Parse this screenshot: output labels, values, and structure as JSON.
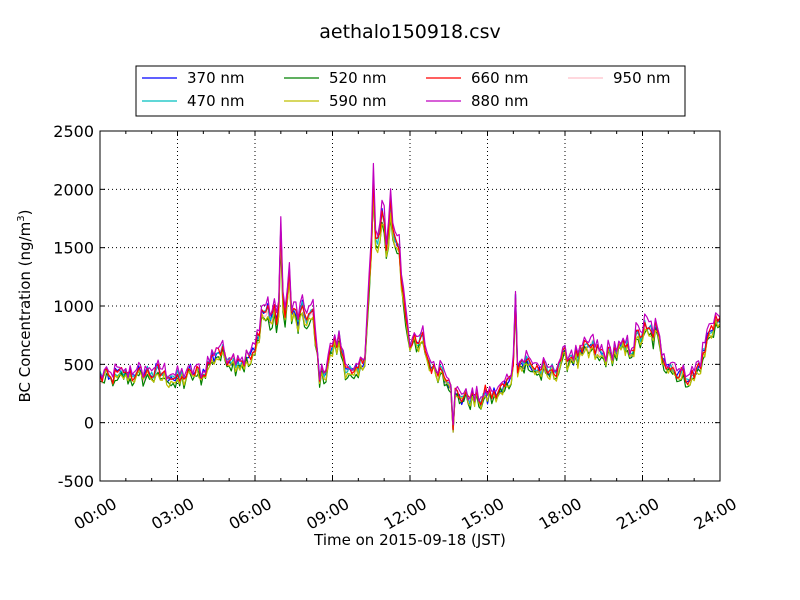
{
  "chart_data": {
    "type": "line",
    "title": "aethalo150918.csv",
    "xlabel": "Time on 2015-09-18 (JST)",
    "ylabel": "BC Concentration (ng/m",
    "ylabel_sup": "3",
    "ylabel_suffix": ")",
    "xlim": [
      "00:00",
      "24:00"
    ],
    "ylim": [
      -500,
      2500
    ],
    "x_ticks": [
      "00:00",
      "03:00",
      "06:00",
      "09:00",
      "12:00",
      "15:00",
      "18:00",
      "21:00",
      "24:00"
    ],
    "y_ticks": [
      -500,
      0,
      500,
      1000,
      1500,
      2000,
      2500
    ],
    "grid": true,
    "legend_position": "top",
    "series": [
      {
        "name": "370 nm",
        "color": "#0000ff"
      },
      {
        "name": "470 nm",
        "color": "#00bfbf"
      },
      {
        "name": "520 nm",
        "color": "#008000"
      },
      {
        "name": "590 nm",
        "color": "#bfbf00"
      },
      {
        "name": "660 nm",
        "color": "#ff0000"
      },
      {
        "name": "880 nm",
        "color": "#bf00bf"
      },
      {
        "name": "950 nm",
        "color": "#ffc0cb"
      }
    ],
    "profile_hours": [
      0,
      0.5,
      1,
      1.5,
      2,
      2.5,
      3,
      3.5,
      4,
      4.5,
      5,
      5.5,
      6,
      6.25,
      6.5,
      6.75,
      7,
      7.25,
      7.5,
      7.75,
      8,
      8.25,
      8.5,
      8.75,
      9,
      9.25,
      9.5,
      9.75,
      10,
      10.25,
      10.5,
      10.75,
      11,
      11.25,
      11.5,
      11.75,
      12,
      12.25,
      12.5,
      12.75,
      13,
      13.25,
      13.5,
      13.75,
      14,
      14.25,
      14.5,
      14.75,
      15,
      15.25,
      15.5,
      15.75,
      16,
      16.5,
      17,
      17.5,
      18,
      18.5,
      19,
      19.5,
      20,
      20.5,
      21,
      21.25,
      21.5,
      21.75,
      22,
      22.25,
      22.5,
      22.75,
      23,
      23.25,
      23.5,
      23.75,
      24
    ],
    "profile_values": [
      400,
      380,
      420,
      410,
      430,
      410,
      360,
      430,
      420,
      620,
      560,
      520,
      580,
      950,
      950,
      880,
      1000,
      1050,
      900,
      900,
      920,
      880,
      420,
      450,
      650,
      700,
      500,
      400,
      420,
      600,
      1450,
      1550,
      1650,
      1550,
      1600,
      1100,
      700,
      650,
      700,
      500,
      450,
      450,
      380,
      250,
      230,
      220,
      210,
      200,
      230,
      240,
      270,
      330,
      480,
      520,
      450,
      420,
      580,
      560,
      640,
      560,
      620,
      620,
      780,
      760,
      780,
      600,
      500,
      450,
      420,
      400,
      400,
      500,
      700,
      900,
      820
    ]
  }
}
